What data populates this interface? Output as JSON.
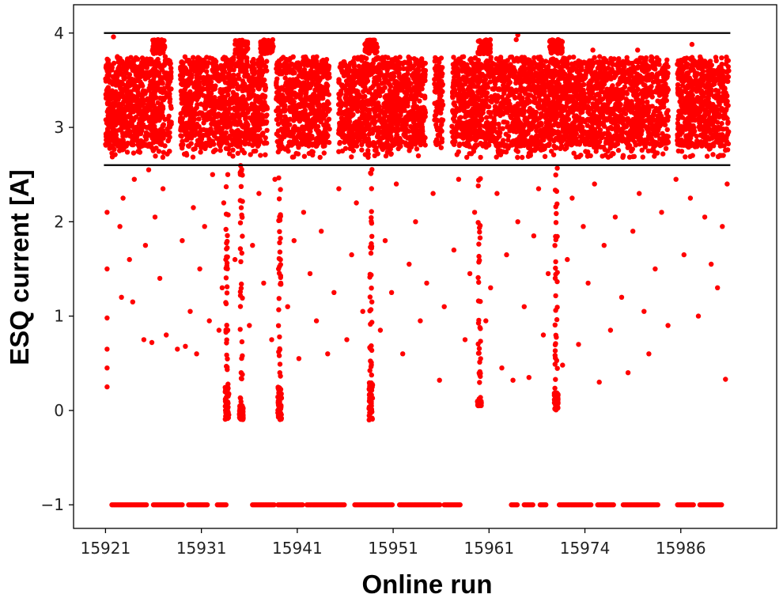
{
  "chart_data": {
    "type": "scatter",
    "xlabel": "Online run",
    "ylabel": "ESQ current [A]",
    "x_tick_labels": [
      "15921",
      "15931",
      "15941",
      "15951",
      "15961",
      "15974",
      "15986"
    ],
    "y_tick_labels": [
      "−1",
      "0",
      "1",
      "2",
      "3",
      "4"
    ],
    "y_ticks": [
      -1,
      0,
      1,
      2,
      3,
      4
    ],
    "ylim": [
      -1.25,
      4.3
    ],
    "x_range_index": [
      -1.0,
      21.0
    ],
    "x_data_range_index": [
      0.0,
      19.5
    ],
    "grid": false,
    "legend": "none",
    "marker_color": "#ff0000",
    "reference_lines": [
      {
        "y": 4.0,
        "color": "#000000"
      },
      {
        "y": 2.6,
        "color": "#000000"
      }
    ],
    "main_band": {
      "y_min": 2.8,
      "y_max": 3.7
    },
    "run_gaps_index": [
      2.2,
      5.2,
      7.15,
      10.15,
      10.7,
      17.75
    ],
    "spike_runs_index": [
      1.65,
      4.25,
      5.05,
      8.3,
      11.85,
      14.1
    ],
    "dip_clusters": [
      {
        "x_index": 3.8,
        "y": [
          -0.1,
          0.25
        ]
      },
      {
        "x_index": 4.25,
        "y": [
          -0.1,
          0.05
        ]
      },
      {
        "x_index": 5.45,
        "y": [
          -0.1,
          0.25
        ]
      },
      {
        "x_index": 8.3,
        "y": [
          -0.1,
          0.3
        ]
      },
      {
        "x_index": 11.7,
        "y": [
          0.05,
          0.1
        ]
      },
      {
        "x_index": 14.1,
        "y": [
          0.0,
          0.2
        ]
      }
    ],
    "dropout_segments_index": [
      [
        0.2,
        1.3
      ],
      [
        1.5,
        2.4
      ],
      [
        2.6,
        3.2
      ],
      [
        3.5,
        3.8
      ],
      [
        4.6,
        5.3
      ],
      [
        5.4,
        6.2
      ],
      [
        6.3,
        7.5
      ],
      [
        7.8,
        9.0
      ],
      [
        9.2,
        10.5
      ],
      [
        10.6,
        11.1
      ],
      [
        12.7,
        12.9
      ],
      [
        13.1,
        13.4
      ],
      [
        13.6,
        13.8
      ],
      [
        14.2,
        15.2
      ],
      [
        15.4,
        15.9
      ],
      [
        16.2,
        17.3
      ],
      [
        17.9,
        18.4
      ],
      [
        18.6,
        19.3
      ]
    ],
    "scattered_outliers": [
      [
        0.05,
        0.25
      ],
      [
        0.05,
        0.45
      ],
      [
        0.05,
        0.65
      ],
      [
        0.05,
        0.98
      ],
      [
        0.05,
        1.5
      ],
      [
        0.05,
        2.1
      ],
      [
        0.45,
        1.95
      ],
      [
        0.5,
        1.2
      ],
      [
        0.55,
        2.25
      ],
      [
        0.75,
        1.6
      ],
      [
        0.85,
        1.15
      ],
      [
        0.9,
        2.45
      ],
      [
        1.2,
        0.75
      ],
      [
        1.25,
        1.75
      ],
      [
        1.35,
        2.55
      ],
      [
        1.45,
        0.72
      ],
      [
        1.55,
        2.05
      ],
      [
        1.7,
        1.4
      ],
      [
        1.8,
        2.35
      ],
      [
        1.9,
        0.8
      ],
      [
        2.25,
        0.65
      ],
      [
        2.4,
        1.8
      ],
      [
        2.5,
        0.68
      ],
      [
        2.65,
        1.05
      ],
      [
        2.75,
        2.15
      ],
      [
        2.85,
        0.6
      ],
      [
        2.95,
        1.5
      ],
      [
        3.1,
        1.95
      ],
      [
        3.25,
        0.95
      ],
      [
        3.35,
        2.5
      ],
      [
        3.55,
        0.85
      ],
      [
        3.65,
        1.3
      ],
      [
        3.7,
        2.2
      ],
      [
        4.05,
        1.6
      ],
      [
        4.5,
        0.9
      ],
      [
        4.6,
        1.75
      ],
      [
        4.8,
        2.3
      ],
      [
        4.95,
        1.35
      ],
      [
        5.2,
        0.75
      ],
      [
        5.3,
        2.45
      ],
      [
        5.7,
        1.1
      ],
      [
        5.9,
        1.8
      ],
      [
        6.05,
        0.55
      ],
      [
        6.2,
        2.1
      ],
      [
        6.4,
        1.45
      ],
      [
        6.6,
        0.95
      ],
      [
        6.75,
        1.9
      ],
      [
        6.95,
        0.6
      ],
      [
        7.15,
        1.25
      ],
      [
        7.3,
        2.35
      ],
      [
        7.55,
        0.75
      ],
      [
        7.7,
        1.65
      ],
      [
        7.85,
        2.2
      ],
      [
        8.05,
        1.05
      ],
      [
        8.6,
        0.85
      ],
      [
        8.75,
        1.8
      ],
      [
        8.95,
        1.25
      ],
      [
        9.1,
        2.4
      ],
      [
        9.3,
        0.6
      ],
      [
        9.5,
        1.55
      ],
      [
        9.7,
        2.0
      ],
      [
        9.85,
        0.95
      ],
      [
        10.05,
        1.35
      ],
      [
        10.25,
        2.3
      ],
      [
        10.45,
        0.32
      ],
      [
        10.6,
        1.1
      ],
      [
        10.9,
        1.7
      ],
      [
        11.05,
        2.45
      ],
      [
        11.25,
        0.75
      ],
      [
        11.4,
        1.45
      ],
      [
        11.55,
        2.1
      ],
      [
        11.9,
        0.95
      ],
      [
        12.05,
        1.3
      ],
      [
        12.25,
        2.3
      ],
      [
        12.4,
        0.45
      ],
      [
        12.55,
        1.65
      ],
      [
        12.75,
        0.32
      ],
      [
        12.9,
        2.0
      ],
      [
        13.1,
        1.1
      ],
      [
        13.25,
        0.35
      ],
      [
        13.4,
        1.85
      ],
      [
        13.55,
        2.35
      ],
      [
        13.7,
        0.8
      ],
      [
        13.85,
        1.45
      ],
      [
        14.3,
        0.48
      ],
      [
        14.45,
        1.6
      ],
      [
        14.6,
        2.25
      ],
      [
        14.8,
        0.7
      ],
      [
        14.95,
        1.95
      ],
      [
        15.1,
        1.35
      ],
      [
        15.3,
        2.4
      ],
      [
        15.45,
        0.3
      ],
      [
        15.6,
        1.75
      ],
      [
        15.8,
        0.85
      ],
      [
        15.95,
        2.05
      ],
      [
        16.15,
        1.2
      ],
      [
        16.35,
        0.4
      ],
      [
        16.5,
        1.9
      ],
      [
        16.7,
        2.3
      ],
      [
        16.85,
        1.05
      ],
      [
        17.0,
        0.6
      ],
      [
        17.2,
        1.5
      ],
      [
        17.4,
        2.1
      ],
      [
        17.6,
        0.9
      ],
      [
        17.85,
        2.45
      ],
      [
        18.1,
        1.65
      ],
      [
        18.3,
        2.25
      ],
      [
        18.55,
        1.0
      ],
      [
        18.75,
        2.05
      ],
      [
        18.95,
        1.55
      ],
      [
        19.15,
        1.3
      ],
      [
        19.3,
        1.95
      ],
      [
        19.4,
        0.33
      ],
      [
        19.45,
        2.4
      ]
    ]
  }
}
